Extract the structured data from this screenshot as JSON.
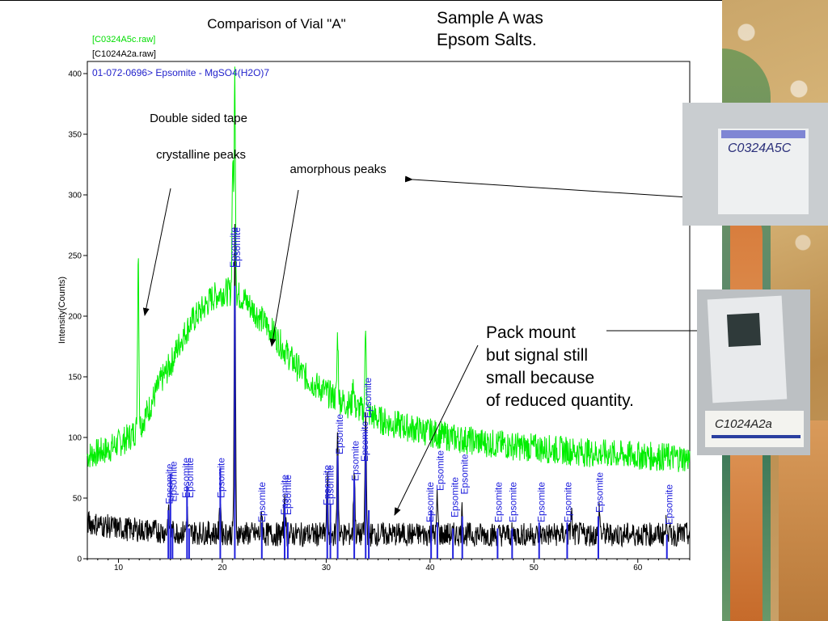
{
  "slide": {
    "sample_note_lines": [
      "Sample A was",
      "Epsom Salts."
    ],
    "pack_note_lines": [
      "Pack mount",
      "but signal still",
      "small because",
      "of reduced quantity."
    ],
    "photo1_label": "C0324A5C",
    "photo2_label": "C1024A2a"
  },
  "chart_data": {
    "type": "line",
    "title": "Comparison of Vial \"A\"",
    "xlabel": "",
    "ylabel": "Intensity(Counts)",
    "xlim": [
      7,
      65
    ],
    "ylim": [
      0,
      410
    ],
    "x_ticks": [
      10,
      20,
      30,
      40,
      50,
      60
    ],
    "y_ticks": [
      0,
      50,
      100,
      150,
      200,
      250,
      300,
      350,
      400
    ],
    "grid": false,
    "legend": [
      {
        "label": "[C0324A5c.raw]",
        "color": "#00dd00"
      },
      {
        "label": "[C1024A2a.raw]",
        "color": "#000000"
      },
      {
        "label": "01-072-0696> Epsomite - MgSO4(H2O)7",
        "color": "#2222cc"
      }
    ],
    "series": [
      {
        "name": "[C0324A5c.raw]",
        "color": "#00ee00",
        "noise": 6,
        "points": [
          [
            7,
            85
          ],
          [
            9,
            90
          ],
          [
            11,
            100
          ],
          [
            12,
            108
          ],
          [
            13,
            125
          ],
          [
            14,
            145
          ],
          [
            15,
            160
          ],
          [
            16,
            180
          ],
          [
            17,
            195
          ],
          [
            18,
            205
          ],
          [
            19,
            215
          ],
          [
            20,
            220
          ],
          [
            21,
            220
          ],
          [
            22,
            215
          ],
          [
            23,
            205
          ],
          [
            24,
            195
          ],
          [
            25,
            185
          ],
          [
            26,
            172
          ],
          [
            27,
            160
          ],
          [
            28,
            150
          ],
          [
            29,
            143
          ],
          [
            30,
            137
          ],
          [
            31,
            132
          ],
          [
            32,
            128
          ],
          [
            33,
            124
          ],
          [
            34,
            120
          ],
          [
            35,
            115
          ],
          [
            36,
            112
          ],
          [
            38,
            108
          ],
          [
            40,
            104
          ],
          [
            42,
            100
          ],
          [
            45,
            96
          ],
          [
            48,
            93
          ],
          [
            52,
            90
          ],
          [
            56,
            87
          ],
          [
            60,
            85
          ],
          [
            65,
            83
          ]
        ],
        "peaks": [
          [
            11.9,
            255
          ],
          [
            21.2,
            400
          ],
          [
            21.0,
            330
          ],
          [
            31.1,
            185
          ],
          [
            32.6,
            150
          ],
          [
            33.8,
            193
          ],
          [
            29.7,
            140
          ],
          [
            25.0,
            185
          ]
        ]
      },
      {
        "name": "[C1024A2a.raw]",
        "color": "#000000",
        "noise": 5,
        "points": [
          [
            7,
            30
          ],
          [
            10,
            25
          ],
          [
            15,
            22
          ],
          [
            20,
            21
          ],
          [
            25,
            20
          ],
          [
            30,
            20
          ],
          [
            35,
            20
          ],
          [
            40,
            20
          ],
          [
            45,
            20
          ],
          [
            50,
            20
          ],
          [
            55,
            20
          ],
          [
            60,
            20
          ],
          [
            65,
            20
          ]
        ],
        "peaks": [
          [
            14.8,
            38
          ],
          [
            16.6,
            40
          ],
          [
            19.8,
            52
          ],
          [
            21.2,
            270
          ],
          [
            23.8,
            40
          ],
          [
            26.0,
            55
          ],
          [
            30.1,
            65
          ],
          [
            31.1,
            110
          ],
          [
            32.7,
            75
          ],
          [
            33.8,
            120
          ],
          [
            40.7,
            50
          ],
          [
            43.1,
            40
          ],
          [
            53.6,
            38
          ],
          [
            56.3,
            42
          ],
          [
            62.8,
            35
          ]
        ]
      }
    ],
    "reference": {
      "name": "Epsomite",
      "color": "#2222dd",
      "sticks": [
        [
          14.8,
          40
        ],
        [
          15.0,
          70
        ],
        [
          15.2,
          25
        ],
        [
          16.6,
          60
        ],
        [
          16.8,
          25
        ],
        [
          19.8,
          75
        ],
        [
          21.2,
          225
        ],
        [
          23.8,
          30
        ],
        [
          26.0,
          45
        ],
        [
          26.3,
          30
        ],
        [
          30.1,
          60
        ],
        [
          30.4,
          45
        ],
        [
          31.1,
          85
        ],
        [
          32.7,
          65
        ],
        [
          33.8,
          105
        ],
        [
          34.1,
          40
        ],
        [
          40.1,
          40
        ],
        [
          40.7,
          30
        ],
        [
          42.2,
          25
        ],
        [
          43.1,
          35
        ],
        [
          46.5,
          25
        ],
        [
          47.9,
          25
        ],
        [
          50.5,
          30
        ],
        [
          53.2,
          30
        ],
        [
          56.2,
          35
        ],
        [
          62.8,
          20
        ]
      ],
      "labels": [
        [
          14.9,
          45,
          "Epsomite"
        ],
        [
          15.3,
          47,
          "Epsomite"
        ],
        [
          16.5,
          50,
          "Epsomite"
        ],
        [
          16.9,
          50,
          "Epsomite"
        ],
        [
          19.9,
          50,
          "Epsomite"
        ],
        [
          21.1,
          240,
          "Epsomite"
        ],
        [
          21.4,
          240,
          "Epsomite"
        ],
        [
          23.8,
          30,
          "Epsomite"
        ],
        [
          26.0,
          36,
          "Epsomite"
        ],
        [
          26.3,
          36,
          "Epsomite"
        ],
        [
          30.1,
          44,
          "Epsomite"
        ],
        [
          30.4,
          44,
          "Epsomite"
        ],
        [
          31.3,
          86,
          "Epsomite"
        ],
        [
          32.8,
          64,
          "Epsomite"
        ],
        [
          33.7,
          80,
          "Epsomite"
        ],
        [
          34.0,
          116,
          "Epsomite"
        ],
        [
          40.0,
          30,
          "Epsomite"
        ],
        [
          41.0,
          56,
          "Epsomite"
        ],
        [
          42.4,
          34,
          "Epsomite"
        ],
        [
          43.3,
          53,
          "Epsomite"
        ],
        [
          46.6,
          30,
          "Epsomite"
        ],
        [
          48.0,
          30,
          "Epsomite"
        ],
        [
          50.7,
          30,
          "Epsomite"
        ],
        [
          53.3,
          30,
          "Epsomite"
        ],
        [
          56.3,
          38,
          "Epsomite"
        ],
        [
          63.0,
          28,
          "Epsomite"
        ]
      ]
    },
    "annotations": [
      {
        "text": "Double sided tape",
        "at": [
          13.0,
          360
        ],
        "arrow_to": null
      },
      {
        "text": "crystalline peaks",
        "at": [
          13.0,
          330
        ],
        "arrow_to": [
          11.9,
          205
        ],
        "arrow_from": [
          11.9,
          312
        ]
      },
      {
        "text": "amorphous peaks",
        "at": [
          26.5,
          318
        ],
        "arrow_to": [
          25.7,
          180
        ],
        "arrow_from": [
          24.5,
          304
        ]
      }
    ]
  }
}
